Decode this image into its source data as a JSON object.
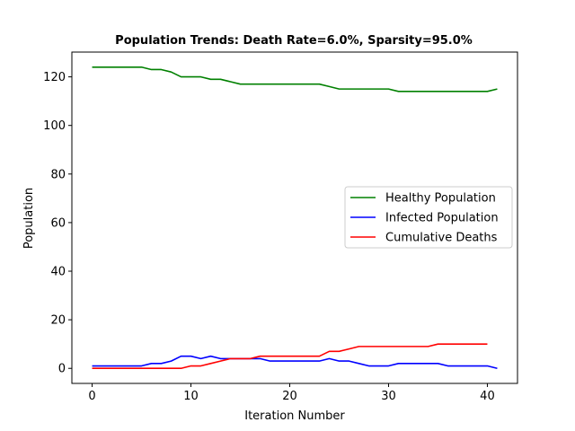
{
  "chart_data": {
    "type": "line",
    "title": "Population Trends: Death Rate=6.0%, Sparsity=95.0%",
    "xlabel": "Iteration Number",
    "ylabel": "Population",
    "xlim": [
      -2.05,
      43.05
    ],
    "ylim": [
      -6.2,
      130.2
    ],
    "xticks": [
      0,
      10,
      20,
      30,
      40
    ],
    "yticks": [
      0,
      20,
      40,
      60,
      80,
      100,
      120
    ],
    "grid": false,
    "legend_position": "center-right",
    "series": [
      {
        "name": "Healthy Population",
        "color": "#008000",
        "x": [
          0,
          1,
          2,
          3,
          4,
          5,
          6,
          7,
          8,
          9,
          10,
          11,
          12,
          13,
          14,
          15,
          16,
          17,
          18,
          19,
          20,
          21,
          22,
          23,
          24,
          25,
          26,
          27,
          28,
          29,
          30,
          31,
          32,
          33,
          34,
          35,
          36,
          37,
          38,
          39,
          40,
          41
        ],
        "values": [
          124,
          124,
          124,
          124,
          124,
          124,
          123,
          123,
          122,
          120,
          120,
          120,
          119,
          119,
          118,
          117,
          117,
          117,
          117,
          117,
          117,
          117,
          117,
          117,
          116,
          115,
          115,
          115,
          115,
          115,
          115,
          114,
          114,
          114,
          114,
          114,
          114,
          114,
          114,
          114,
          114,
          115
        ]
      },
      {
        "name": "Infected Population",
        "color": "#0000ff",
        "x": [
          0,
          1,
          2,
          3,
          4,
          5,
          6,
          7,
          8,
          9,
          10,
          11,
          12,
          13,
          14,
          15,
          16,
          17,
          18,
          19,
          20,
          21,
          22,
          23,
          24,
          25,
          26,
          27,
          28,
          29,
          30,
          31,
          32,
          33,
          34,
          35,
          36,
          37,
          38,
          39,
          40,
          41
        ],
        "values": [
          1,
          1,
          1,
          1,
          1,
          1,
          2,
          2,
          3,
          5,
          5,
          4,
          5,
          4,
          4,
          4,
          4,
          4,
          3,
          3,
          3,
          3,
          3,
          3,
          4,
          3,
          3,
          2,
          1,
          1,
          1,
          2,
          2,
          2,
          2,
          2,
          1,
          1,
          1,
          1,
          1,
          0
        ]
      },
      {
        "name": "Cumulative Deaths",
        "color": "#ff0000",
        "x": [
          0,
          1,
          2,
          3,
          4,
          5,
          6,
          7,
          8,
          9,
          10,
          11,
          12,
          13,
          14,
          15,
          16,
          17,
          18,
          19,
          20,
          21,
          22,
          23,
          24,
          25,
          26,
          27,
          28,
          29,
          30,
          31,
          32,
          33,
          34,
          35,
          36,
          37,
          38,
          39,
          40
        ],
        "values": [
          0,
          0,
          0,
          0,
          0,
          0,
          0,
          0,
          0,
          0,
          1,
          1,
          2,
          3,
          4,
          4,
          4,
          5,
          5,
          5,
          5,
          5,
          5,
          5,
          7,
          7,
          8,
          9,
          9,
          9,
          9,
          9,
          9,
          9,
          9,
          10,
          10,
          10,
          10,
          10,
          10
        ]
      }
    ]
  }
}
